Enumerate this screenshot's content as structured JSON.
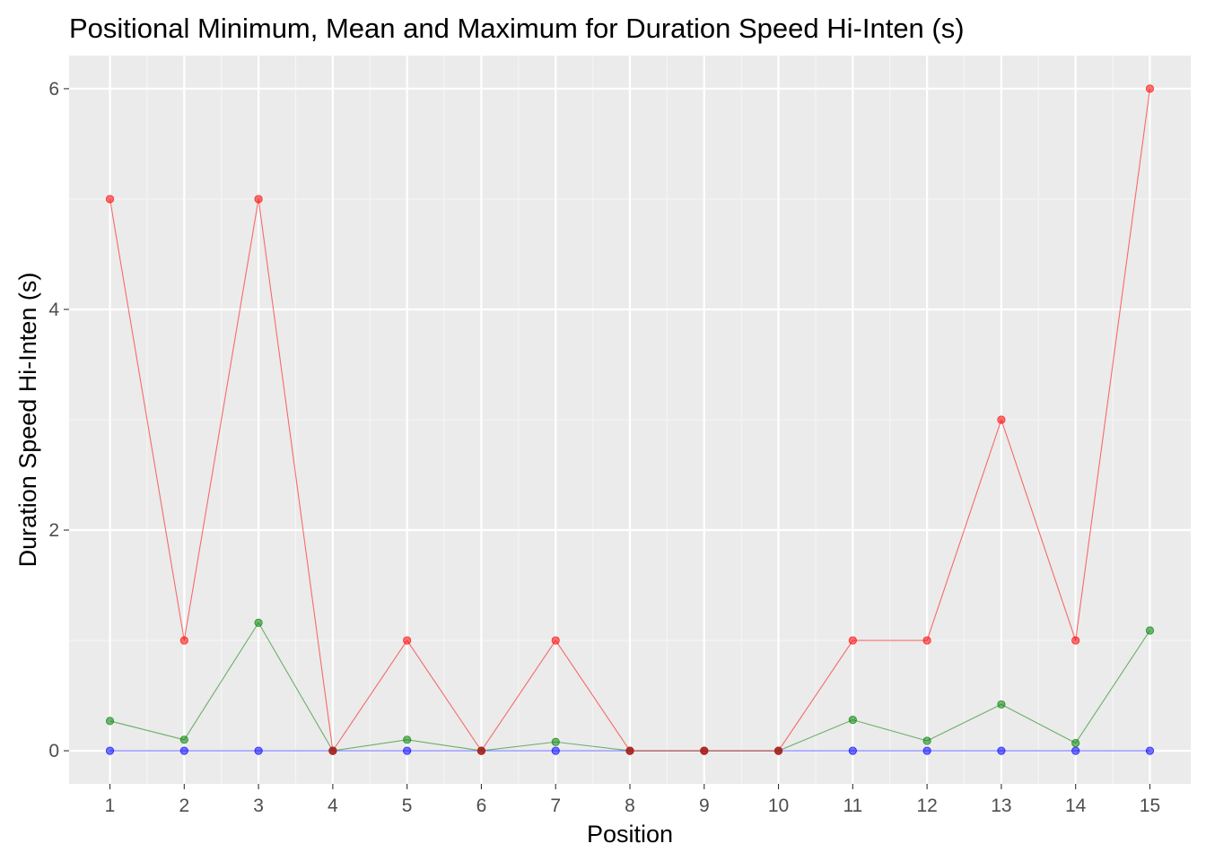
{
  "chart_data": {
    "type": "line",
    "title": "Positional Minimum, Mean and Maximum for Duration Speed Hi-Inten (s)",
    "xlabel": "Position",
    "ylabel": "Duration Speed Hi-Inten (s)",
    "x": [
      1,
      2,
      3,
      4,
      5,
      6,
      7,
      8,
      9,
      10,
      11,
      12,
      13,
      14,
      15
    ],
    "xlim": [
      0.45,
      15.55
    ],
    "ylim": [
      -0.3,
      6.3
    ],
    "x_ticks": [
      "1",
      "2",
      "3",
      "4",
      "5",
      "6",
      "7",
      "8",
      "9",
      "10",
      "11",
      "12",
      "13",
      "14",
      "15"
    ],
    "y_ticks": [
      0,
      2,
      4,
      6
    ],
    "y_tick_labels": [
      "0",
      "2",
      "4",
      "6"
    ],
    "grid": true,
    "legend": "none",
    "series": [
      {
        "color": "#0000ff",
        "values": [
          0,
          0,
          0,
          0,
          0,
          0,
          0,
          0,
          0,
          0,
          0,
          0,
          0,
          0,
          0
        ]
      },
      {
        "color": "#008000",
        "values": [
          0.27,
          0.1,
          1.16,
          0,
          0.1,
          0,
          0.08,
          0,
          0,
          0,
          0.28,
          0.09,
          0.42,
          0.07,
          1.09
        ]
      },
      {
        "color": "#ff0000",
        "values": [
          5,
          1,
          5,
          0,
          1,
          0,
          1,
          0,
          0,
          0,
          1,
          1,
          3,
          1,
          6
        ]
      }
    ]
  },
  "colors": {
    "panel_background": "#ebebeb",
    "grid_major": "#ffffff",
    "grid_minor": "#f5f5f5",
    "tick_text": "#4d4d4d",
    "tick_mark": "#333333"
  }
}
